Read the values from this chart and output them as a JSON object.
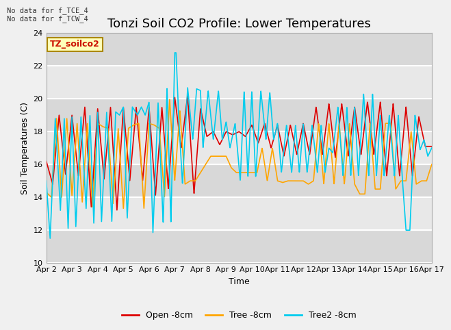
{
  "title": "Tonzi Soil CO2 Profile: Lower Temperatures",
  "ylabel": "Soil Temperatures (C)",
  "xlabel": "Time",
  "top_note": "No data for f_TCE_4\nNo data for f_TCW_4",
  "legend_label": "TZ_soilco2",
  "ylim": [
    10,
    24
  ],
  "yticks": [
    10,
    12,
    14,
    16,
    18,
    20,
    22,
    24
  ],
  "xlim": [
    0,
    15
  ],
  "xtick_labels": [
    "Apr 2",
    "Apr 3",
    "Apr 4",
    "Apr 5",
    "Apr 6",
    "Apr 7",
    "Apr 8",
    "Apr 9",
    "Apr 10",
    "Apr 11",
    "Apr 12",
    "Apr 13",
    "Apr 14",
    "Apr 15",
    "Apr 16",
    "Apr 17"
  ],
  "series_colors": [
    "#dd0000",
    "#ffa500",
    "#00ccee"
  ],
  "series_names": [
    "Open -8cm",
    "Tree -8cm",
    "Tree2 -8cm"
  ],
  "line_width": 1.2,
  "plot_bg": "#e8e8e8",
  "grid_color": "#ffffff",
  "title_fontsize": 13,
  "axis_fontsize": 9,
  "tick_fontsize": 8,
  "fig_bg": "#f0f0f0"
}
